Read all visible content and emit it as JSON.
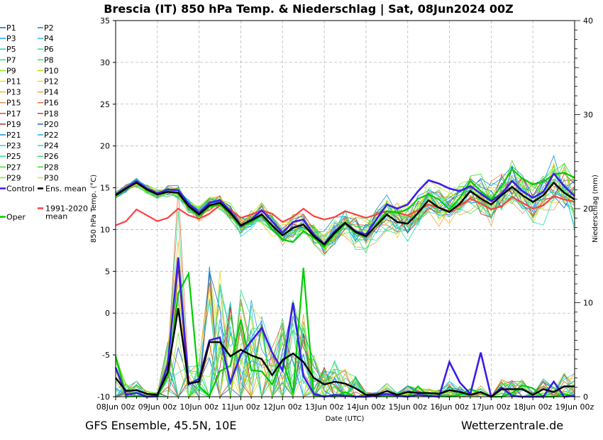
{
  "header": {
    "title": "Brescia  (IT)  850 hPa Temp. & Niederschlag | Sat, 08Jun2024 00Z"
  },
  "footer": {
    "left": "GFS Ensemble, 45.5N, 10E",
    "right": "Wetterzentrale.de"
  },
  "colors": {
    "members": [
      "#2050e0",
      "#1a78e0",
      "#20a0f0",
      "#30c0e0",
      "#20d0c0",
      "#30e090",
      "#40e060",
      "#40e040",
      "#80ee20",
      "#c0e010",
      "#e8e020",
      "#f0d030",
      "#f0b830",
      "#f0a040",
      "#e89040",
      "#e07040",
      "#d05030",
      "#c04040",
      "#b03030",
      "#2060e0",
      "#1090e0",
      "#20b0f0",
      "#30d0e0",
      "#20e0b0",
      "#30e080",
      "#40e060",
      "#40e030",
      "#30e020",
      "#80ee20",
      "#e0e020"
    ],
    "control": "#3a1ee8",
    "ensmean": "#000000",
    "oper": "#00cc00",
    "climate": "#ff4040"
  },
  "legend": {
    "members": [
      "P1",
      "P2",
      "P3",
      "P4",
      "P5",
      "P6",
      "P7",
      "P8",
      "P9",
      "P10",
      "P11",
      "P12",
      "P13",
      "P14",
      "P15",
      "P16",
      "P17",
      "P18",
      "P19",
      "P20",
      "P21",
      "P22",
      "P23",
      "P24",
      "P25",
      "P26",
      "P27",
      "P28",
      "P29",
      "P30"
    ],
    "control": "Control",
    "ensmean": "Ens. mean",
    "oper": "Oper",
    "climate_line1": "1991-2020",
    "climate_line2": "mean"
  },
  "chart_data": {
    "type": "line",
    "title": "Brescia  (IT)  850 hPa Temp. & Niederschlag | Sat, 08Jun2024 00Z",
    "x_labels": [
      "08Jun 00z",
      "09Jun 00z",
      "10Jun 00z",
      "11Jun 00z",
      "12Jun 00z",
      "13Jun 00z",
      "14Jun 00z",
      "15Jun 00z",
      "16Jun 00z",
      "17Jun 00z",
      "18Jun 00z",
      "19Jun 00z"
    ],
    "x_step_hours": 6,
    "xlabel": "Date (UTC)",
    "ylabel": "850 hPa Temp. (°C)",
    "ylim": [
      -10,
      35
    ],
    "yticks": [
      -10,
      -5,
      0,
      5,
      10,
      15,
      20,
      25,
      30,
      35
    ],
    "ylabel_right": "Niederschlag (mm)",
    "ylim_right": [
      0,
      40
    ],
    "yticks_right": [
      0,
      10,
      20,
      30,
      40
    ],
    "grid": true,
    "legend_position": "left",
    "temperature": {
      "control": [
        14.2,
        15.0,
        15.8,
        14.9,
        14.3,
        14.8,
        14.7,
        13.1,
        12.0,
        13.2,
        13.5,
        12.2,
        10.4,
        11.2,
        12.3,
        11.0,
        9.6,
        10.9,
        11.2,
        9.4,
        8.3,
        9.8,
        10.8,
        9.8,
        9.4,
        11.2,
        13.0,
        12.5,
        13.0,
        14.6,
        15.9,
        15.5,
        14.9,
        14.6,
        15.2,
        14.3,
        13.4,
        14.3,
        15.8,
        14.6,
        13.8,
        14.5,
        16.7,
        15.2,
        14.0
      ],
      "ensmean": [
        14.1,
        14.9,
        15.6,
        14.8,
        14.2,
        14.5,
        14.4,
        12.8,
        11.8,
        12.9,
        13.2,
        12.0,
        10.5,
        11.1,
        11.8,
        10.5,
        9.3,
        10.2,
        10.6,
        9.2,
        8.2,
        9.6,
        10.8,
        9.7,
        9.2,
        10.5,
        11.8,
        10.9,
        10.7,
        12.0,
        13.5,
        12.6,
        12.1,
        13.1,
        14.6,
        13.7,
        13.0,
        14.1,
        15.1,
        14.1,
        13.3,
        14.1,
        15.6,
        14.4,
        13.6
      ],
      "oper": [
        14.0,
        14.8,
        15.7,
        14.7,
        14.2,
        14.6,
        14.3,
        12.6,
        11.6,
        12.7,
        13.0,
        11.8,
        10.3,
        10.9,
        11.7,
        10.0,
        8.8,
        8.5,
        9.8,
        9.0,
        7.9,
        9.4,
        10.7,
        9.6,
        9.1,
        10.6,
        12.2,
        12.0,
        12.4,
        13.7,
        14.2,
        13.6,
        12.4,
        13.8,
        15.8,
        14.6,
        13.6,
        15.2,
        17.2,
        16.1,
        15.4,
        15.7,
        16.6,
        16.8,
        16.2
      ],
      "climate": [
        10.5,
        11.0,
        12.4,
        11.7,
        11.0,
        11.4,
        12.5,
        11.7,
        11.3,
        11.9,
        12.9,
        12.4,
        11.4,
        11.8,
        12.3,
        11.9,
        10.9,
        11.5,
        12.5,
        11.6,
        11.2,
        11.5,
        12.2,
        11.8,
        11.4,
        11.8,
        12.2,
        12.0,
        11.7,
        12.3,
        13.0,
        12.6,
        12.2,
        12.9,
        13.7,
        13.1,
        12.4,
        12.8,
        13.9,
        13.2,
        12.5,
        12.9,
        14.0,
        13.6,
        13.3
      ]
    },
    "precipitation_mm": {
      "control": [
        3.1,
        0.2,
        0.4,
        0.0,
        0.1,
        3.4,
        14.8,
        1.3,
        1.9,
        6.0,
        6.3,
        1.5,
        4.5,
        5.9,
        7.3,
        4.7,
        2.8,
        10.0,
        2.2,
        0.3,
        0.0,
        0.2,
        0.1,
        0.0,
        0.0,
        0.1,
        0.3,
        0.1,
        0.0,
        0.2,
        0.1,
        0.0,
        3.7,
        1.5,
        0.3,
        4.7,
        0.0,
        1.0,
        0.1,
        0.0,
        0.0,
        0.0,
        1.6,
        0.0,
        0.1
      ],
      "ensmean": [
        2.0,
        0.6,
        0.7,
        0.3,
        0.2,
        2.6,
        9.4,
        1.4,
        1.6,
        5.8,
        5.8,
        4.3,
        5.0,
        4.4,
        4.0,
        2.3,
        3.9,
        4.6,
        3.7,
        2.0,
        1.3,
        1.6,
        1.4,
        0.9,
        0.2,
        0.2,
        0.6,
        0.2,
        0.5,
        0.4,
        0.4,
        0.3,
        0.7,
        0.5,
        0.2,
        0.5,
        0.0,
        0.8,
        0.8,
        0.8,
        0.2,
        0.8,
        0.5,
        1.1,
        1.1
      ],
      "oper": [
        4.3,
        0.0,
        0.1,
        0.0,
        0.0,
        2.1,
        11.0,
        13.1,
        1.1,
        0.1,
        2.7,
        3.3,
        8.2,
        2.8,
        2.7,
        1.3,
        3.9,
        0.4,
        13.7,
        0.1,
        0.1,
        0.0,
        0.5,
        0.0,
        0.2,
        0.0,
        0.1,
        0.2,
        0.0,
        1.1,
        0.0,
        0.1,
        0.0,
        0.2,
        0.8,
        0.4,
        0.0,
        0.0,
        0.4,
        1.2,
        0.9,
        0.0,
        0.0,
        0.3,
        0.0
      ]
    }
  }
}
